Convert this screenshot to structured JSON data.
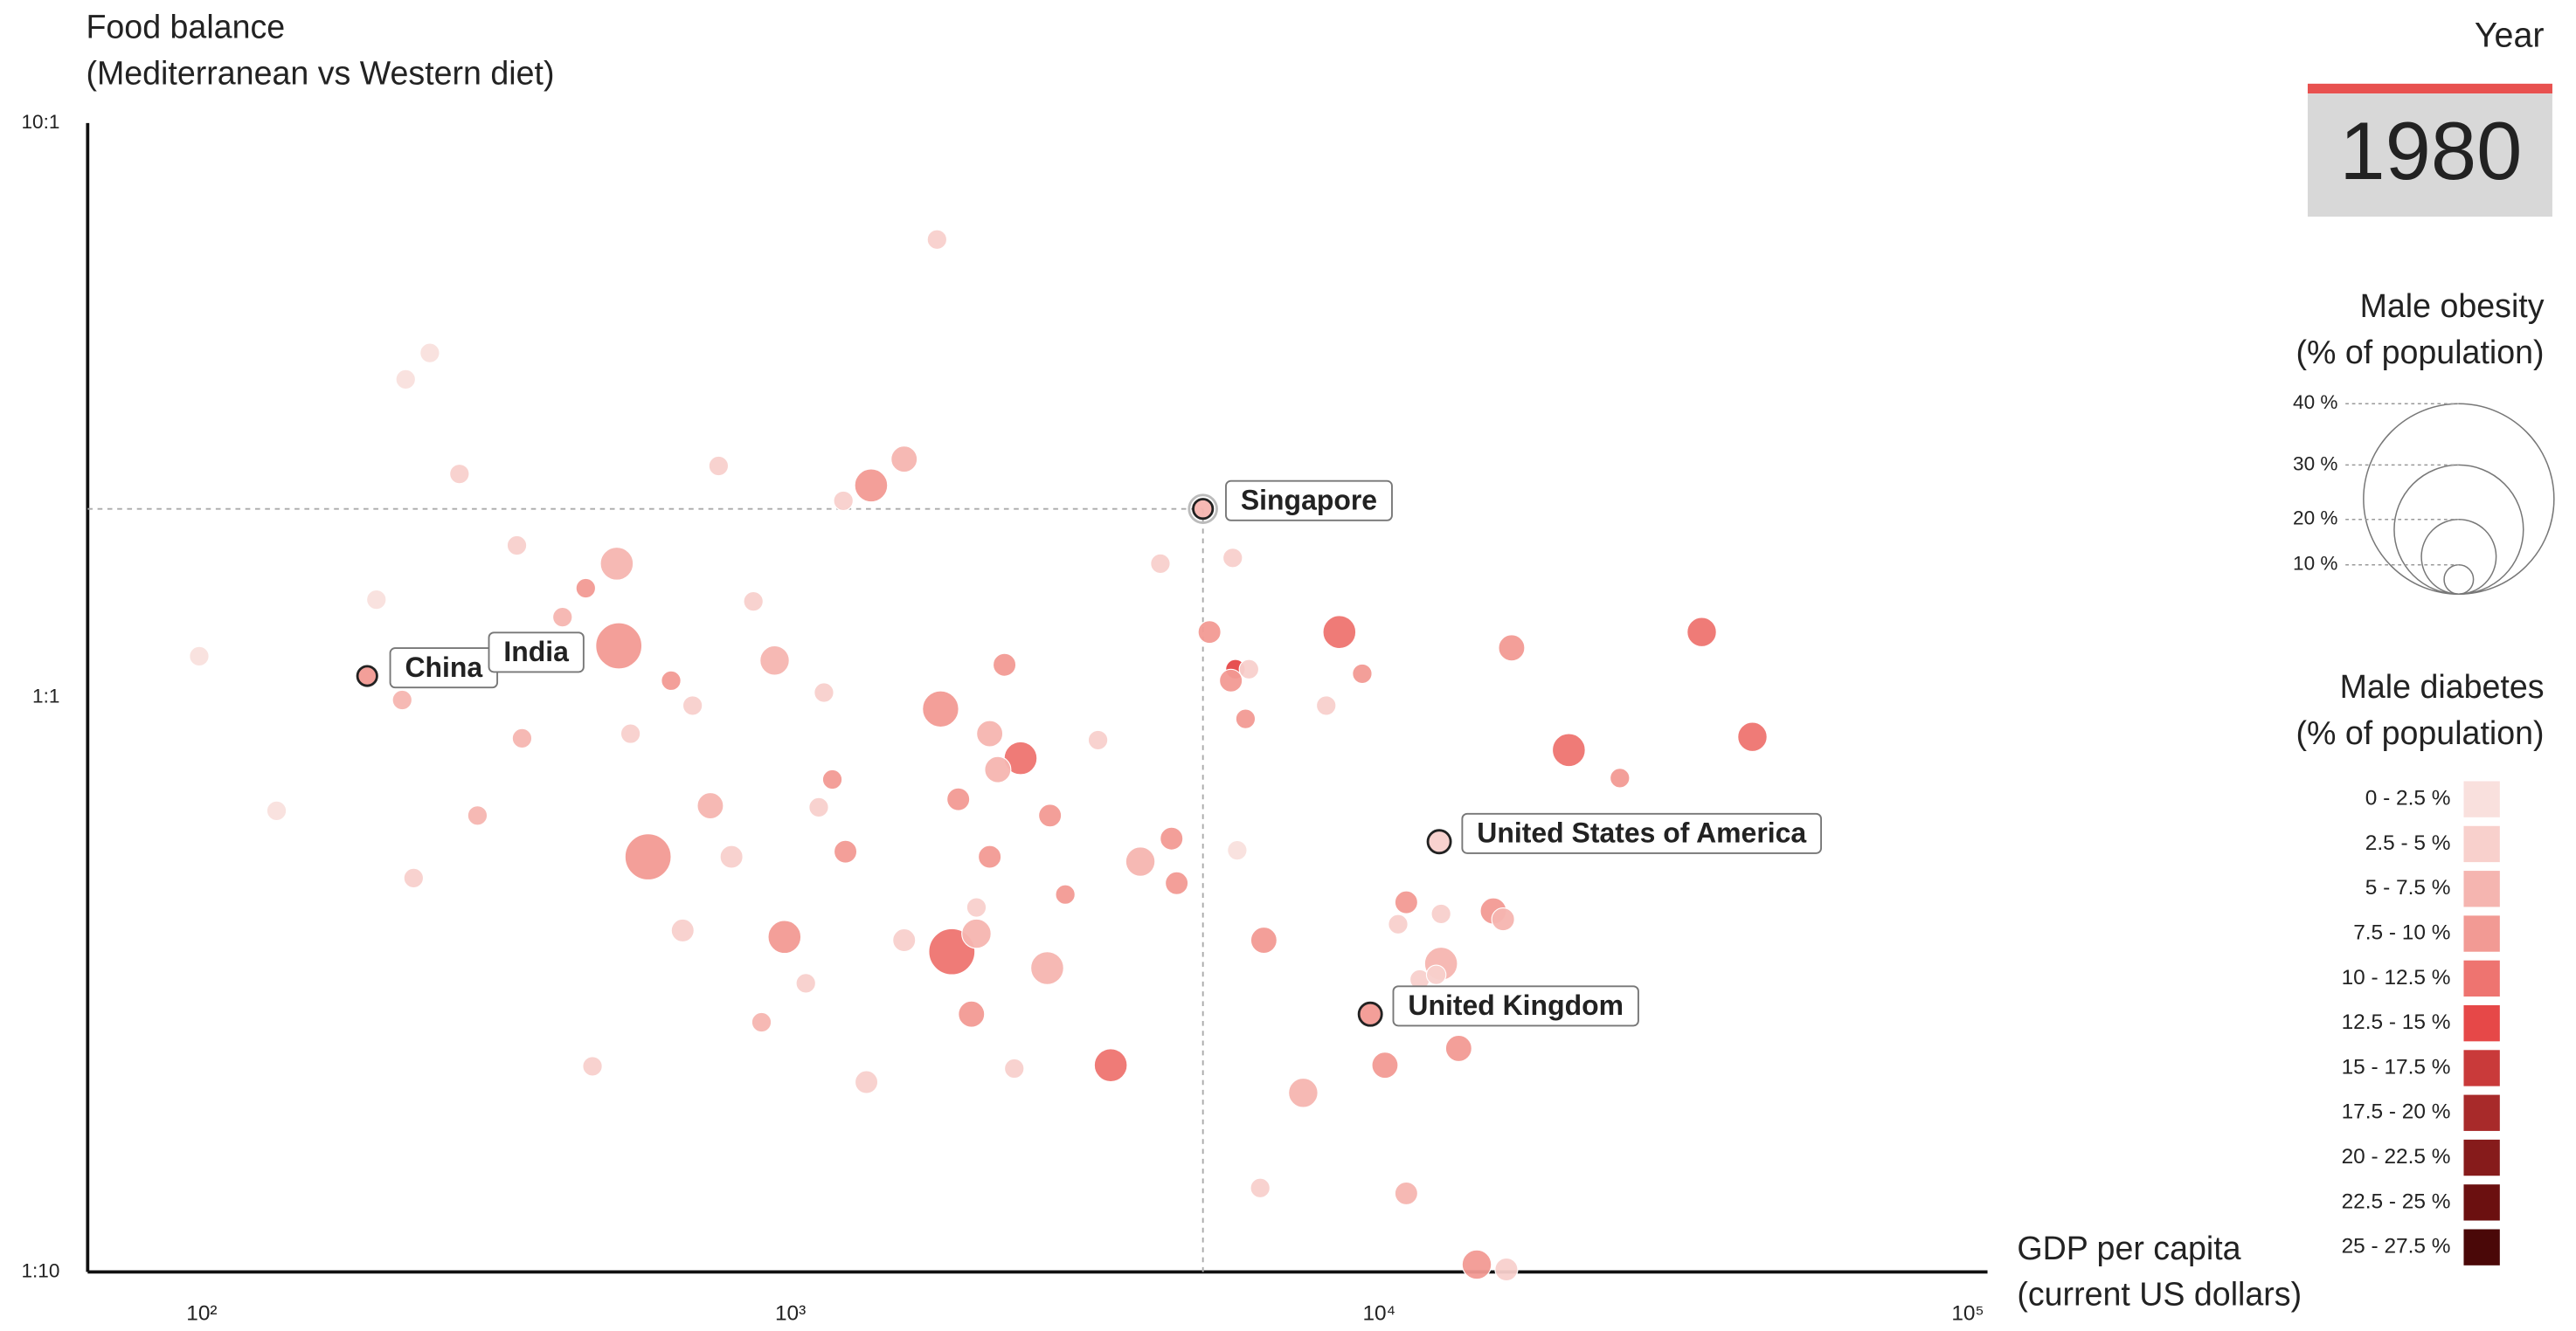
{
  "chart_data": {
    "type": "scatter",
    "title": [
      "Food balance",
      "(Mediterranean vs Western diet)"
    ],
    "x_label": [
      "GDP per capita",
      "(current US dollars)"
    ],
    "year_label": "Year",
    "year": "1980",
    "xscale": "log",
    "yscale": "log",
    "xlim": [
      64,
      108000
    ],
    "xticks": [
      {
        "value": 100,
        "label": "10²"
      },
      {
        "value": 1000,
        "label": "10³"
      },
      {
        "value": 10000,
        "label": "10⁴"
      },
      {
        "value": 100000,
        "label": "10⁵"
      }
    ],
    "ylim": [
      0.1,
      10
    ],
    "yticks": [
      {
        "value": 0.1,
        "label": "1:10"
      },
      {
        "value": 1,
        "label": "1:1"
      },
      {
        "value": 10,
        "label": "10:1"
      }
    ],
    "highlighted": "Singapore",
    "x": [
      99,
      134,
      198,
      191,
      222,
      244,
      274,
      229,
      294,
      343,
      350,
      410,
      449,
      461,
      507,
      511,
      573,
      627,
      656,
      731,
      755,
      794,
      865,
      893,
      940,
      977,
      1062,
      1140,
      1178,
      1240,
      1230,
      1346,
      1371,
      1560,
      1560,
      1774,
      1799,
      1880,
      1928,
      2030,
      2070,
      2180,
      2180,
      2310,
      2460,
      2730,
      2760,
      2930,
      3330,
      3500,
      3930,
      4250,
      4440,
      4530,
      5020,
      5150,
      5640,
      5700,
      5740,
      5930,
      6280,
      6370,
      7430,
      8130,
      8560,
      9360,
      9660,
      10230,
      11120,
      11120,
      11720,
      12740,
      12650,
      12740,
      13650,
      14650,
      15630,
      16450,
      16790,
      21000,
      25640,
      35320,
      43060,
      281,
      219,
      535,
      682,
      1117,
      2070,
      2250,
      2400,
      10770,
      12500,
      6010,
      16240,
      5600
    ],
    "values": [
      1.18,
      0.635,
      1.48,
      1.09,
      3.58,
      3.98,
      2.45,
      0.485,
      0.623,
      1.84,
      0.849,
      1.38,
      1.55,
      0.228,
      1.71,
      1.23,
      0.528,
      1.07,
      0.393,
      0.648,
      2.53,
      0.528,
      1.47,
      0.272,
      1.16,
      0.383,
      0.318,
      1.02,
      0.72,
      0.539,
      2.2,
      0.214,
      2.34,
      2.6,
      0.378,
      6.27,
      0.955,
      0.361,
      0.665,
      0.281,
      0.388,
      0.865,
      0.528,
      1.14,
      0.784,
      0.338,
      0.623,
      0.454,
      0.843,
      0.229,
      0.518,
      1.71,
      0.568,
      0.475,
      2.13,
      1.3,
      1.75,
      1.12,
      0.542,
      0.918,
      0.14,
      0.378,
      0.205,
      0.968,
      1.3,
      1.1,
      0.281,
      0.229,
      0.44,
      0.137,
      0.323,
      0.344,
      0.561,
      0.42,
      0.245,
      0.103,
      0.425,
      0.101,
      1.22,
      0.81,
      0.724,
      1.3,
      0.854,
      1.16,
      0.99,
      0.865,
      0.968,
      0.644,
      0.431,
      0.749,
      0.226,
      0.403,
      0.329,
      1.12,
      0.411,
      1.07
    ],
    "sizes": [
      7.4,
      7.4,
      7.4,
      7.4,
      7.4,
      7.4,
      7.4,
      7.4,
      7.4,
      7.4,
      7.4,
      7.4,
      7.4,
      7.4,
      10.9,
      14,
      14,
      7.4,
      8.3,
      9.2,
      7.4,
      8.3,
      7.4,
      7.4,
      10,
      10.9,
      7.4,
      7.4,
      7.4,
      8.3,
      7.4,
      8.3,
      10.9,
      9.2,
      8.3,
      7.4,
      11.7,
      14,
      8.3,
      9.2,
      10,
      9.2,
      8.3,
      8.3,
      10.9,
      10.9,
      8.3,
      7.4,
      7.4,
      10.9,
      10,
      7.4,
      8.3,
      8.3,
      7.4,
      8.3,
      7.4,
      7.4,
      7.4,
      7.4,
      7.4,
      9.2,
      10,
      7.4,
      10.9,
      7.4,
      8.3,
      9.2,
      8.3,
      8.3,
      7.4,
      10.9,
      8.3,
      7.4,
      9.2,
      10,
      9.2,
      8.3,
      9.2,
      10.9,
      7.4,
      10,
      10,
      7.4,
      7.4,
      7.4,
      7.4,
      7.4,
      7.4,
      9.2,
      7.4,
      7.4,
      7.4,
      7.4,
      8.3,
      8.3
    ],
    "colors": [
      "#f9e0dd",
      "#f9e0dd",
      "#f9e0dd",
      "#f29a94",
      "#f9e0dd",
      "#f9e0dd",
      "#f8d0cc",
      "#f8d0cc",
      "#f5b5b0",
      "#f8d0cc",
      "#f5b5b0",
      "#f5b5b0",
      "#f29a94",
      "#f8d0cc",
      "#f5b5b0",
      "#f29a94",
      "#f29a94",
      "#f29a94",
      "#f8d0cc",
      "#f5b5b0",
      "#f8d0cc",
      "#f8d0cc",
      "#f8d0cc",
      "#f5b5b0",
      "#f5b5b0",
      "#f29a94",
      "#f8d0cc",
      "#f8d0cc",
      "#f29a94",
      "#f29a94",
      "#f8d0cc",
      "#f8d0cc",
      "#f29a94",
      "#f5b5b0",
      "#f8d0cc",
      "#f8d0cc",
      "#f29a94",
      "#ee7470",
      "#f29a94",
      "#f29a94",
      "#f5b5b0",
      "#f5b5b0",
      "#f29a94",
      "#f29a94",
      "#ee7470",
      "#f5b5b0",
      "#f29a94",
      "#f29a94",
      "#f8d0cc",
      "#ee7470",
      "#f5b5b0",
      "#f8d0cc",
      "#f29a94",
      "#f29a94",
      "#f5b5b0",
      "#f29a94",
      "#f8d0cc",
      "#e64848",
      "#f9e0dd",
      "#f29a94",
      "#f8d0cc",
      "#f29a94",
      "#f5b5b0",
      "#f8d0cc",
      "#ee7470",
      "#f29a94",
      "#f29a94",
      "#f29a94",
      "#f29a94",
      "#f5b5b0",
      "#f8d0cc",
      "#f5b5b0",
      "#f8d0cc",
      "#f8d0cc",
      "#f29a94",
      "#f29a94",
      "#f29a94",
      "#f8d0cc",
      "#f29a94",
      "#ee7470",
      "#f29a94",
      "#ee7470",
      "#ee7470",
      "#f8d0cc",
      "#f5b5b0",
      "#f8d0cc",
      "#f8d0cc",
      "#f8d0cc",
      "#f8d0cc",
      "#f5b5b0",
      "#f8d0cc",
      "#f8d0cc",
      "#f8d0cc",
      "#f8d0cc",
      "#f5b5b0",
      "#f29a94"
    ],
    "labels": [
      null,
      null,
      null,
      "China",
      null,
      null,
      null,
      null,
      null,
      null,
      null,
      null,
      null,
      null,
      null,
      null,
      null,
      null,
      null,
      null,
      null,
      null,
      null,
      null,
      null,
      null,
      null,
      null,
      null,
      null,
      null,
      null,
      null,
      null,
      null,
      null,
      null,
      null,
      null,
      null,
      null,
      null,
      null,
      null,
      null,
      null,
      null,
      null,
      null,
      null,
      null,
      null,
      null,
      null,
      "Singapore",
      null,
      null,
      null,
      null,
      null,
      null,
      null,
      null,
      null,
      null,
      null,
      "United Kingdom",
      null,
      null,
      null,
      null,
      null,
      "United States of America",
      null,
      null,
      null,
      null,
      null,
      null,
      null,
      null,
      null,
      null,
      "India",
      null,
      null,
      null,
      null,
      null,
      null,
      null,
      null,
      null,
      null,
      null,
      null
    ],
    "size_legend": {
      "title": [
        "Male obesity",
        "(% of population)"
      ],
      "ticks": [
        {
          "value": 40,
          "label": "40 %"
        },
        {
          "value": 30,
          "label": "30 %"
        },
        {
          "value": 20,
          "label": "20 %"
        },
        {
          "value": 10,
          "label": "10 %"
        }
      ]
    },
    "color_legend": {
      "title": [
        "Male diabetes",
        "(% of population)"
      ],
      "bins": [
        {
          "label": "0 - 2.5 %",
          "color": "#f9e0dd"
        },
        {
          "label": "2.5 - 5 %",
          "color": "#f8d0cc"
        },
        {
          "label": "5 - 7.5 %",
          "color": "#f5b5b0"
        },
        {
          "label": "7.5 - 10 %",
          "color": "#f29a94"
        },
        {
          "label": "10 - 12.5 %",
          "color": "#ee7470"
        },
        {
          "label": "12.5 - 15 %",
          "color": "#e64848"
        },
        {
          "label": "15 - 17.5 %",
          "color": "#c93a3a"
        },
        {
          "label": "17.5 - 20 %",
          "color": "#a82a2a"
        },
        {
          "label": "20 - 22.5 %",
          "color": "#861b1b"
        },
        {
          "label": "22.5 - 25 %",
          "color": "#6b1010"
        },
        {
          "label": "25 - 27.5 %",
          "color": "#4a0808"
        }
      ]
    }
  }
}
